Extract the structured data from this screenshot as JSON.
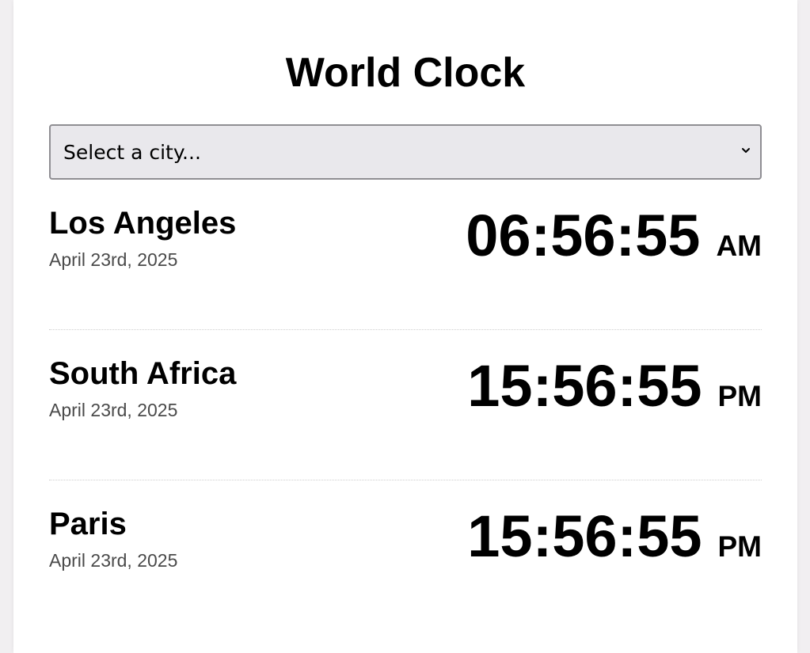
{
  "header": {
    "title": "World Clock"
  },
  "city_select": {
    "selected_label": "Select a city...",
    "icon": "chevron-down-icon"
  },
  "cities": [
    {
      "name": "Los Angeles",
      "date": "April 23rd, 2025",
      "time": "06:56:55",
      "period": "AM"
    },
    {
      "name": "South Africa",
      "date": "April 23rd, 2025",
      "time": "15:56:55",
      "period": "PM"
    },
    {
      "name": "Paris",
      "date": "April 23rd, 2025",
      "time": "15:56:55",
      "period": "PM"
    }
  ]
}
